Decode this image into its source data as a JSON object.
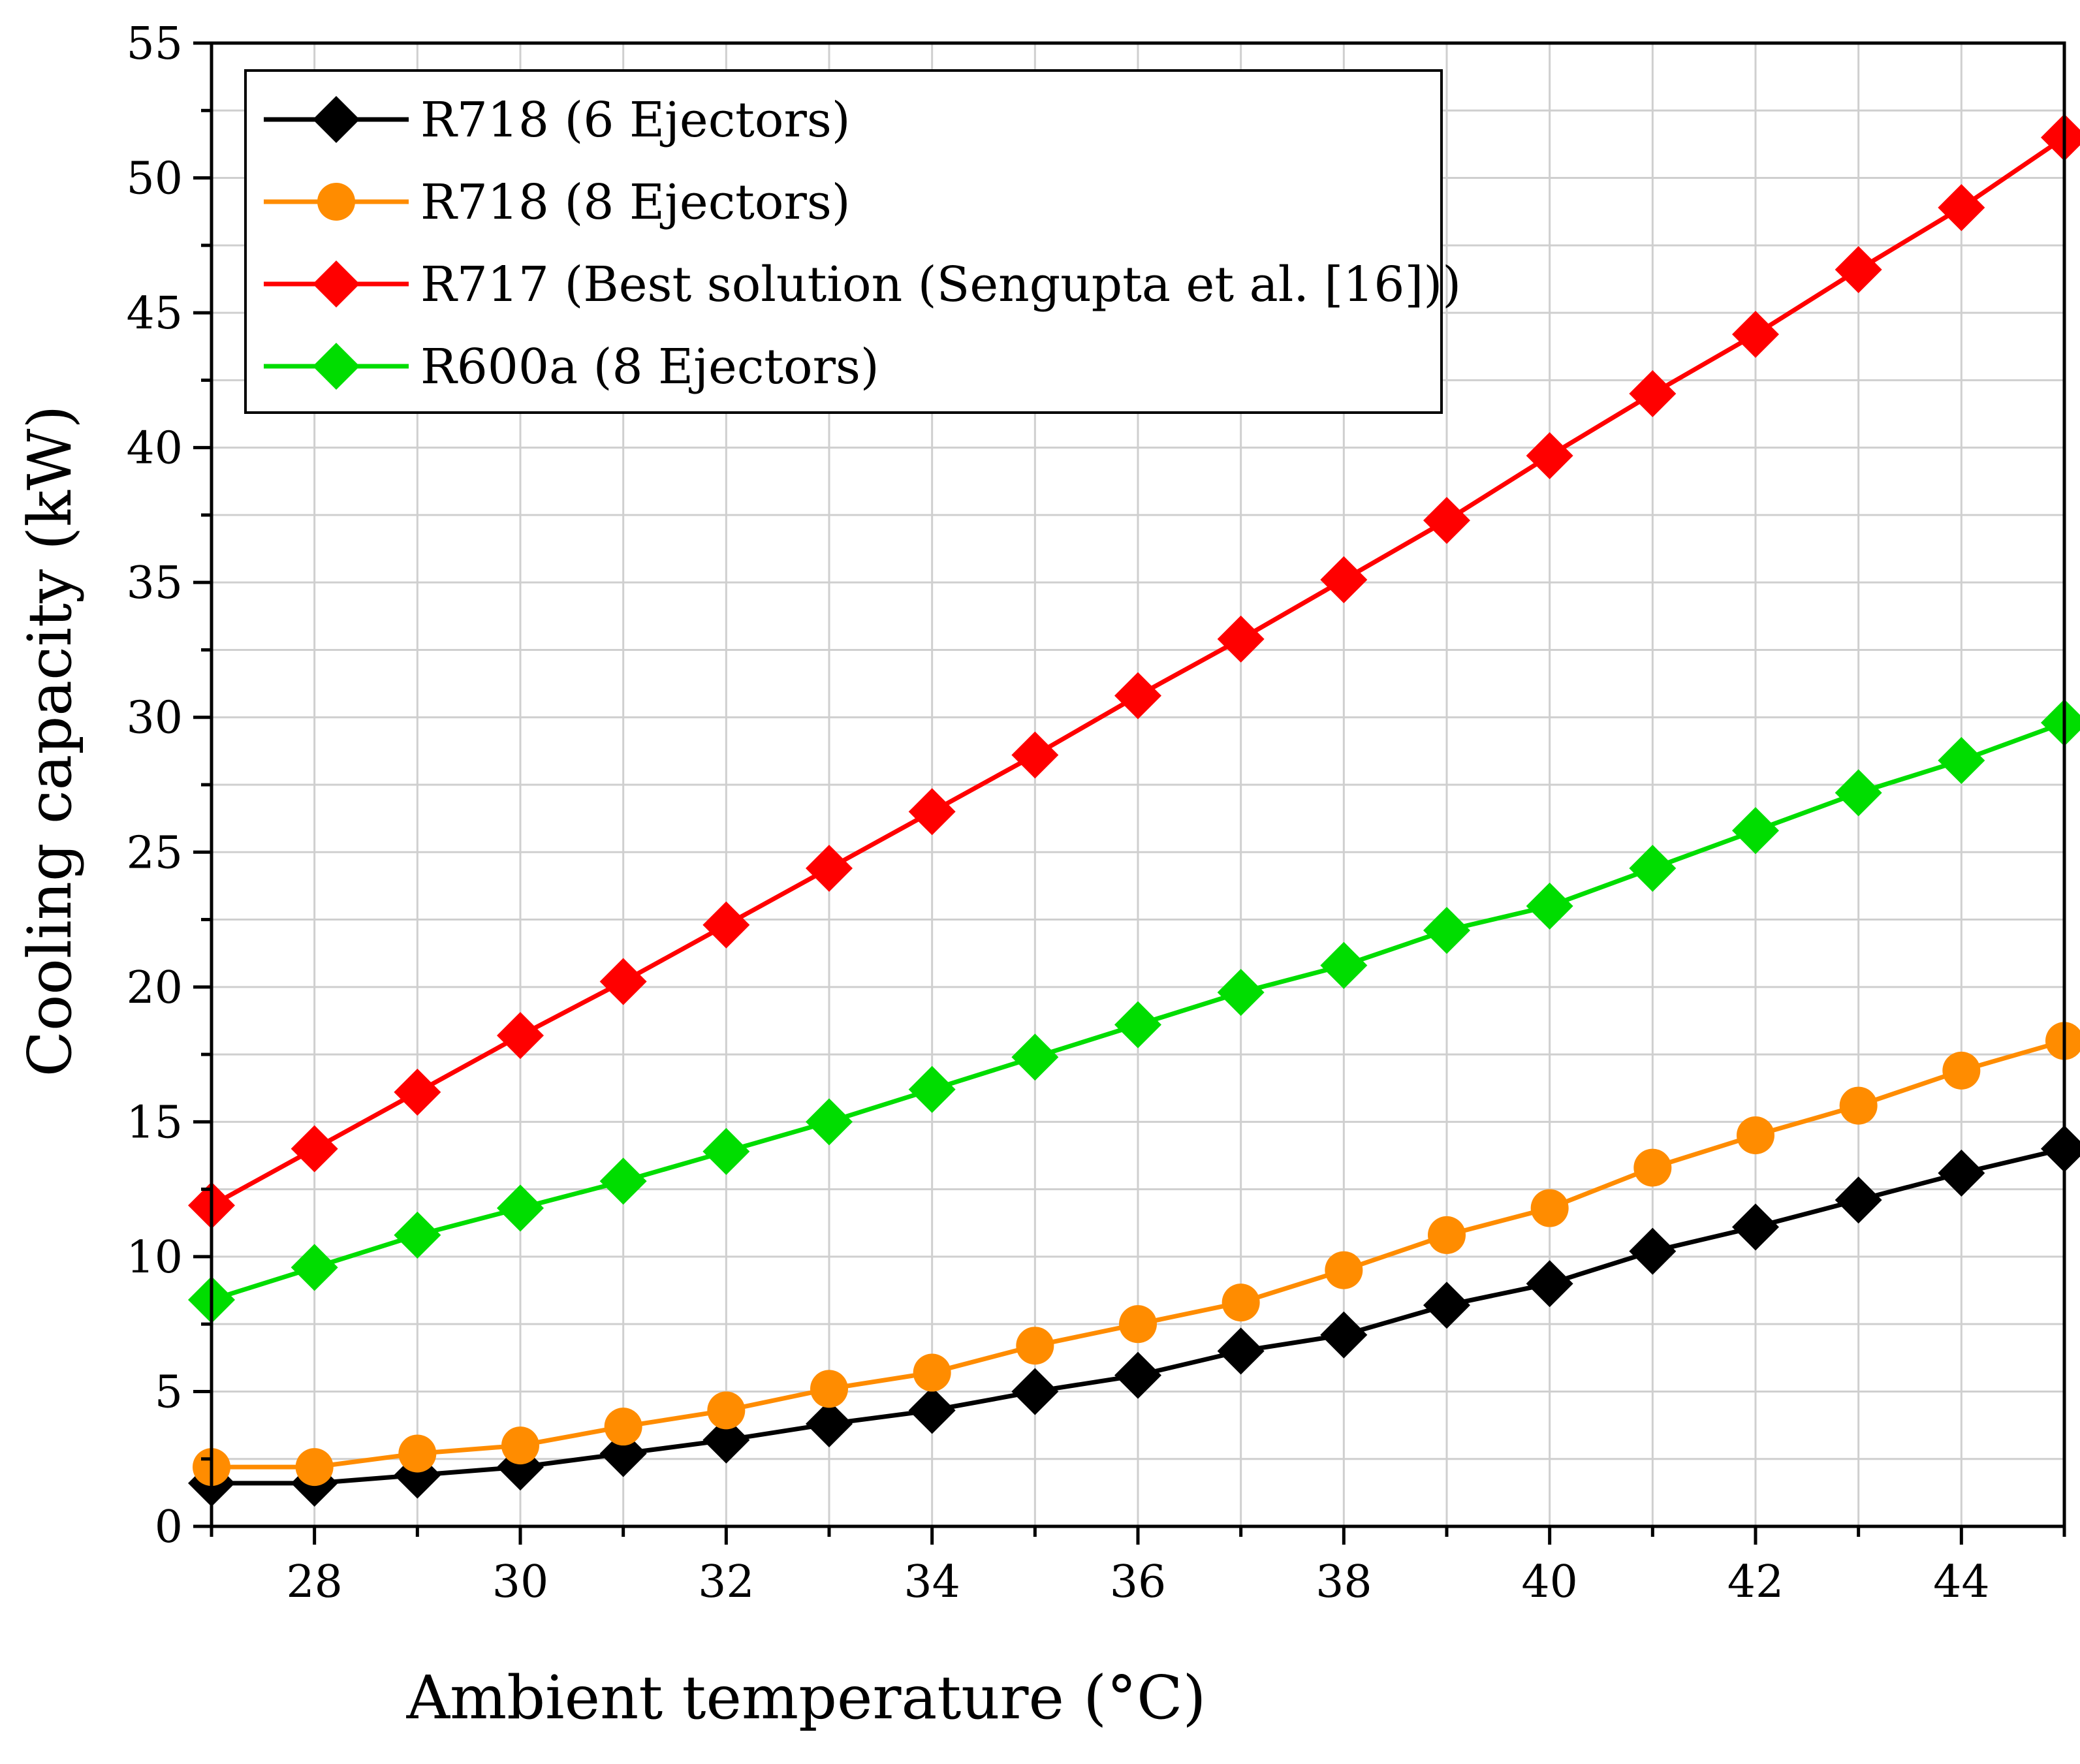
{
  "chart_data": {
    "type": "line",
    "title": "",
    "xlabel": "Ambient temperature (°C)",
    "ylabel": "Cooling capacity (kW)",
    "xlim": [
      27,
      45
    ],
    "ylim": [
      0,
      55
    ],
    "grid": true,
    "legend_position": "top-left",
    "x": [
      27,
      28,
      29,
      30,
      31,
      32,
      33,
      34,
      35,
      36,
      37,
      38,
      39,
      40,
      41,
      42,
      43,
      44,
      45
    ],
    "x_ticks": [
      28,
      30,
      32,
      34,
      36,
      38,
      40,
      42,
      44
    ],
    "x_tick_labels": [
      "28",
      "30",
      "32",
      "34",
      "36",
      "38",
      "40",
      "42",
      "44"
    ],
    "y_ticks": [
      0,
      5,
      10,
      15,
      20,
      25,
      30,
      35,
      40,
      45,
      50,
      55
    ],
    "y_tick_labels": [
      "0",
      "5",
      "10",
      "15",
      "20",
      "25",
      "30",
      "35",
      "40",
      "45",
      "50",
      "55"
    ],
    "series": [
      {
        "name": "R718 (6 Ejectors)",
        "color": "#000000",
        "marker": "diamond",
        "values": [
          1.6,
          1.6,
          1.9,
          2.2,
          2.7,
          3.2,
          3.8,
          4.3,
          5.0,
          5.6,
          6.5,
          7.1,
          8.2,
          9.0,
          10.2,
          11.1,
          12.1,
          13.1,
          14.0
        ]
      },
      {
        "name": "R718 (8 Ejectors)",
        "color": "#ff8c00",
        "marker": "circle",
        "values": [
          2.2,
          2.2,
          2.7,
          3.0,
          3.7,
          4.3,
          5.1,
          5.7,
          6.7,
          7.5,
          8.3,
          9.5,
          10.8,
          11.8,
          13.3,
          14.5,
          15.6,
          16.9,
          18.0
        ]
      },
      {
        "name": "R717 (Best solution (Sengupta et al. [16]))",
        "color": "#ff0000",
        "marker": "diamond",
        "values": [
          11.9,
          14.0,
          16.1,
          18.2,
          20.2,
          22.3,
          24.4,
          26.5,
          28.6,
          30.8,
          32.9,
          35.1,
          37.3,
          39.7,
          42.0,
          44.2,
          46.6,
          48.9,
          51.5
        ]
      },
      {
        "name": "R600a (8 Ejectors)",
        "color": "#00dd00",
        "marker": "diamond",
        "values": [
          8.4,
          9.6,
          10.8,
          11.8,
          12.8,
          13.9,
          15.0,
          16.2,
          17.4,
          18.6,
          19.8,
          20.8,
          22.1,
          23.0,
          24.4,
          25.8,
          27.2,
          28.4,
          29.8
        ]
      }
    ]
  }
}
